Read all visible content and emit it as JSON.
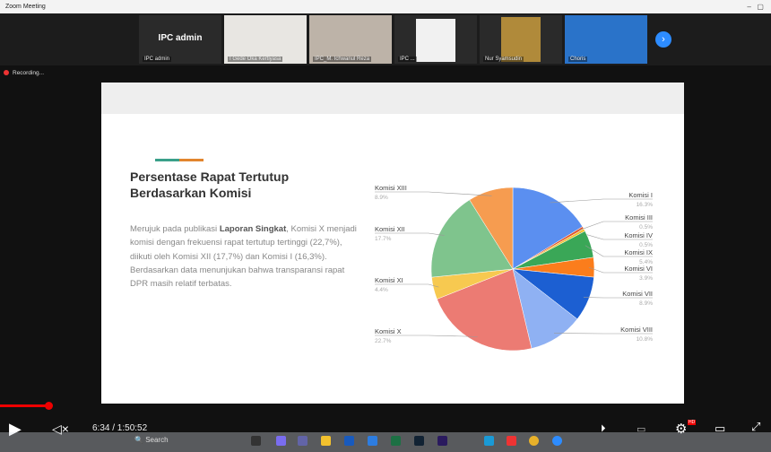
{
  "window": {
    "title": "Zoom Meeting"
  },
  "participants": [
    {
      "name": "IPC admin",
      "tile_label": "IPC admin"
    },
    {
      "name": "I Gede Oka Kertiyasa"
    },
    {
      "name": "IPC_M. Ichwanul Reza"
    },
    {
      "name": "IPC ..."
    },
    {
      "name": "Nur Syamsudin"
    },
    {
      "name": "Choris"
    }
  ],
  "recording": "Recording...",
  "slide": {
    "title": "Persentase Rapat Tertutup Berdasarkan Komisi",
    "body_pre": "Merujuk pada publikasi ",
    "body_bold": "Laporan Singkat",
    "body_post": ", Komisi X menjadi komisi dengan frekuensi rapat tertutup tertinggi (22,7%), diikuti oleh Komisi XII (17,7%) dan Komisi I (16,3%). Berdasarkan data menunjukan bahwa transparansi rapat DPR masih relatif terbatas."
  },
  "chart_data": {
    "type": "pie",
    "categories": [
      "Komisi I",
      "Komisi III",
      "Komisi IV",
      "Komisi IX",
      "Komisi VI",
      "Komisi VII",
      "Komisi VIII",
      "Komisi X",
      "Komisi XI",
      "Komisi XII",
      "Komisi XIII"
    ],
    "values": [
      16.3,
      0.5,
      0.5,
      5.4,
      3.9,
      8.9,
      10.8,
      22.7,
      4.4,
      17.7,
      8.9
    ],
    "labels": [
      "16.3%",
      "0.5%",
      "0.5%",
      "5.4%",
      "3.9%",
      "8.9%",
      "10.8%",
      "22.7%",
      "4.4%",
      "17.7%",
      "8.9%"
    ],
    "colors": [
      "#5b8ff0",
      "#e0552b",
      "#f2c12e",
      "#3aa757",
      "#fb7d1c",
      "#1c5fd2",
      "#8fb1f3",
      "#ec7b73",
      "#f7c950",
      "#7fc48d",
      "#f69c50"
    ]
  },
  "player": {
    "time": "6:34 / 1:50:52",
    "progress": 0.059,
    "quality_badge": "HD"
  },
  "taskbar": {
    "search": "Search"
  }
}
